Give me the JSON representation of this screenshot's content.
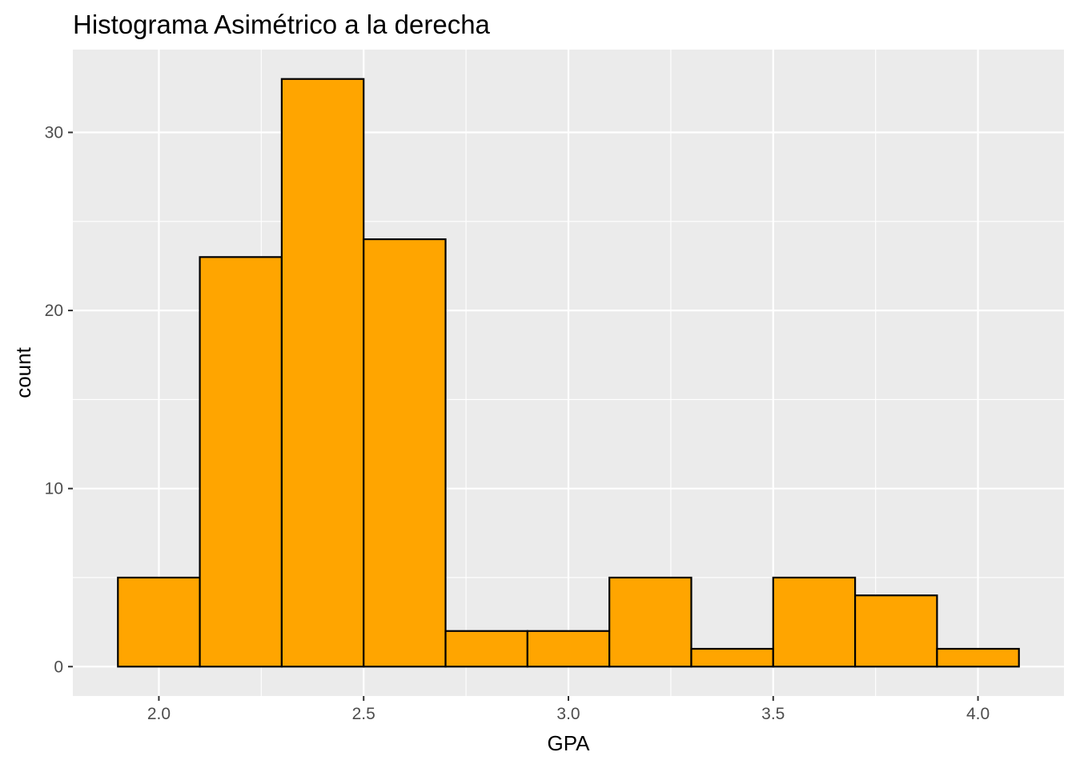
{
  "chart_data": {
    "type": "bar",
    "title": "Histograma Asimétrico a la derecha",
    "xlabel": "GPA",
    "ylabel": "count",
    "bin_edges": [
      1.9,
      2.1,
      2.3,
      2.5,
      2.7,
      2.9,
      3.1,
      3.3,
      3.5,
      3.7,
      3.9,
      4.1
    ],
    "values": [
      5,
      23,
      33,
      24,
      2,
      2,
      5,
      1,
      5,
      4,
      1
    ],
    "xlim": [
      1.79,
      4.21
    ],
    "ylim": [
      -1.65,
      34.65
    ],
    "x_ticks": [
      2.0,
      2.5,
      3.0,
      3.5,
      4.0
    ],
    "x_tick_labels": [
      "2.0",
      "2.5",
      "3.0",
      "3.5",
      "4.0"
    ],
    "x_minor_ticks": [
      2.25,
      2.75,
      3.25,
      3.75
    ],
    "y_ticks": [
      0,
      10,
      20,
      30
    ],
    "y_tick_labels": [
      "0",
      "10",
      "20",
      "30"
    ],
    "y_minor_ticks": [
      5,
      15,
      25
    ],
    "grid": true,
    "legend": "none",
    "colors": {
      "bar_fill": "#FFA500",
      "bar_outline": "#000000",
      "panel_background": "#EBEBEB",
      "grid": "#FFFFFF",
      "tick_text": "#4D4D4D"
    }
  }
}
